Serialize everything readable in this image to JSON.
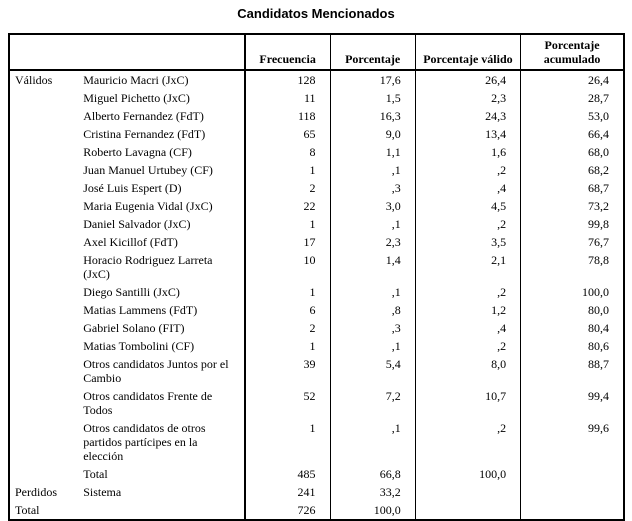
{
  "title": "Candidatos Mencionados",
  "colors": {
    "text": "#000000",
    "background": "#ffffff",
    "border": "#000000"
  },
  "table": {
    "stub_header": "",
    "columns": [
      "Frecuencia",
      "Porcentaje",
      "Porcentaje válido",
      "Porcentaje acumulado"
    ],
    "rows": [
      {
        "group": "Válidos",
        "group_rowspan": 19,
        "label": "Mauricio Macri (JxC)",
        "values": [
          "128",
          "17,6",
          "26,4",
          "26,4"
        ]
      },
      {
        "label": "Miguel Pichetto (JxC)",
        "values": [
          "11",
          "1,5",
          "2,3",
          "28,7"
        ]
      },
      {
        "label": "Alberto Fernandez (FdT)",
        "values": [
          "118",
          "16,3",
          "24,3",
          "53,0"
        ]
      },
      {
        "label": "Cristina Fernandez (FdT)",
        "values": [
          "65",
          "9,0",
          "13,4",
          "66,4"
        ]
      },
      {
        "label": "Roberto Lavagna (CF)",
        "values": [
          "8",
          "1,1",
          "1,6",
          "68,0"
        ]
      },
      {
        "label": "Juan Manuel Urtubey (CF)",
        "values": [
          "1",
          ",1",
          ",2",
          "68,2"
        ]
      },
      {
        "label": "José Luis Espert (D)",
        "values": [
          "2",
          ",3",
          ",4",
          "68,7"
        ]
      },
      {
        "label": "Maria Eugenia Vidal (JxC)",
        "values": [
          "22",
          "3,0",
          "4,5",
          "73,2"
        ]
      },
      {
        "label": "Daniel Salvador (JxC)",
        "values": [
          "1",
          ",1",
          ",2",
          "99,8"
        ]
      },
      {
        "label": "Axel Kicillof (FdT)",
        "values": [
          "17",
          "2,3",
          "3,5",
          "76,7"
        ]
      },
      {
        "label": "Horacio Rodriguez Larreta (JxC)",
        "values": [
          "10",
          "1,4",
          "2,1",
          "78,8"
        ]
      },
      {
        "label": "Diego Santilli (JxC)",
        "values": [
          "1",
          ",1",
          ",2",
          "100,0"
        ]
      },
      {
        "label": "Matias Lammens (FdT)",
        "values": [
          "6",
          ",8",
          "1,2",
          "80,0"
        ]
      },
      {
        "label": "Gabriel Solano (FIT)",
        "values": [
          "2",
          ",3",
          ",4",
          "80,4"
        ]
      },
      {
        "label": "Matias Tombolini (CF)",
        "values": [
          "1",
          ",1",
          ",2",
          "80,6"
        ]
      },
      {
        "label": "Otros candidatos Juntos por el Cambio",
        "values": [
          "39",
          "5,4",
          "8,0",
          "88,7"
        ]
      },
      {
        "label": "Otros candidatos Frente de Todos",
        "values": [
          "52",
          "7,2",
          "10,7",
          "99,4"
        ]
      },
      {
        "label": "Otros candidatos de otros partidos partícipes en la elección",
        "values": [
          "1",
          ",1",
          ",2",
          "99,6"
        ]
      },
      {
        "label": "Total",
        "values": [
          "485",
          "66,8",
          "100,0",
          ""
        ]
      },
      {
        "group": "Perdidos",
        "group_rowspan": 1,
        "label": "Sistema",
        "values": [
          "241",
          "33,2",
          "",
          ""
        ]
      },
      {
        "group": "Total",
        "group_colspan": 2,
        "values": [
          "726",
          "100,0",
          "",
          ""
        ]
      }
    ]
  }
}
